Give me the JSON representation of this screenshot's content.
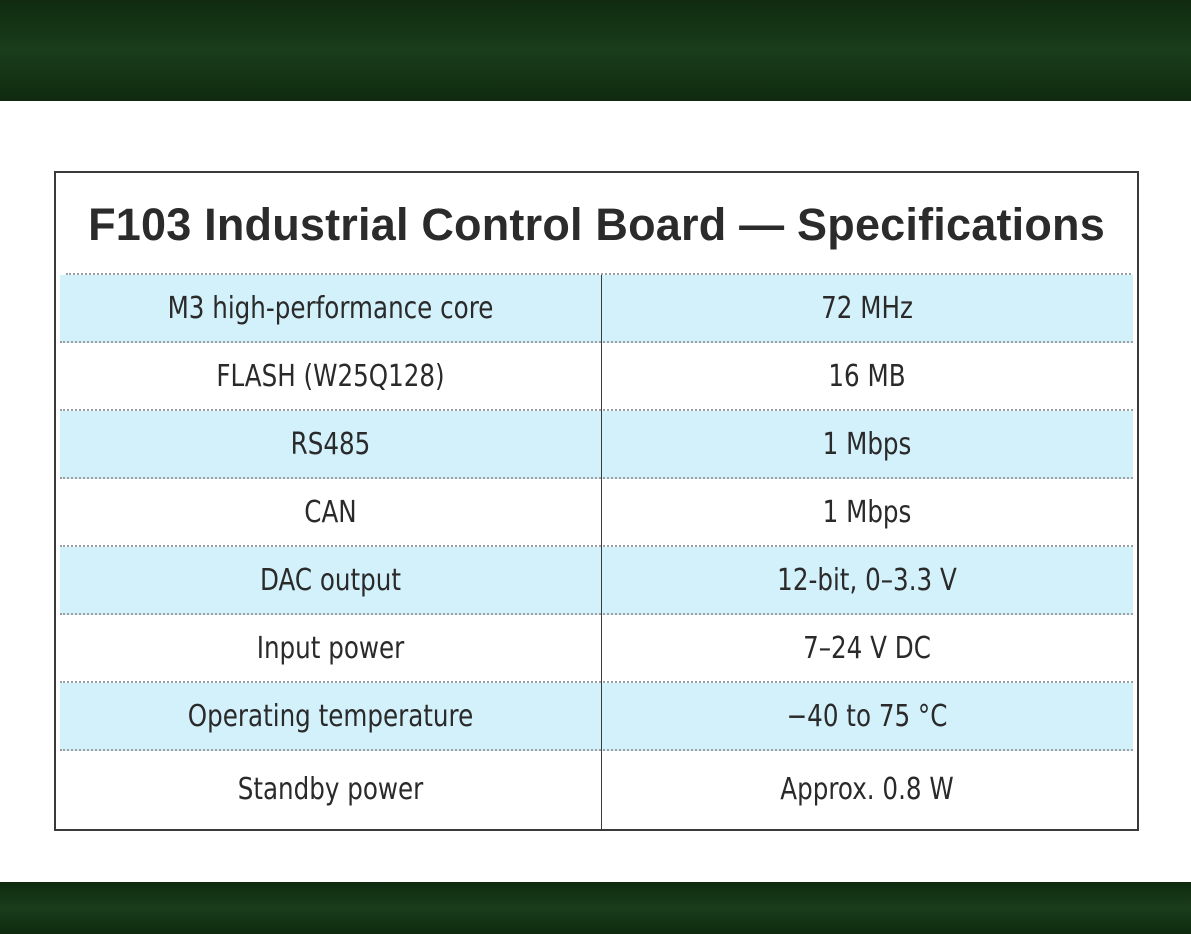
{
  "title": "F103 Industrial Control Board — Specifications",
  "rows": [
    {
      "param": "M3 high-performance core",
      "value": "72 MHz"
    },
    {
      "param": "FLASH (W25Q128)",
      "value": "16 MB"
    },
    {
      "param": "RS485",
      "value": "1 Mbps"
    },
    {
      "param": "CAN",
      "value": "1 Mbps"
    },
    {
      "param": "DAC output",
      "value": "12-bit, 0–3.3 V"
    },
    {
      "param": "Input power",
      "value": "7–24 V DC"
    },
    {
      "param": "Operating temperature",
      "value": "−40 to 75 °C"
    },
    {
      "param": "Standby power",
      "value": "Approx. 0.8 W"
    }
  ],
  "colors": {
    "band": "#1a3d1a",
    "row_shade": "#d3f1fb",
    "border": "#3a3a3a"
  }
}
